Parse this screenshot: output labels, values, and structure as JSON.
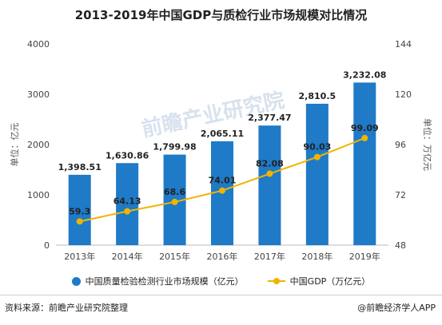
{
  "chart_data": {
    "type": "bar+line",
    "title": "2013-2019年中国GDP与质检行业市场规模对比情况",
    "categories": [
      "2013年",
      "2014年",
      "2015年",
      "2016年",
      "2017年",
      "2018年",
      "2019年"
    ],
    "series": [
      {
        "name": "中国质量检验检测行业市场规模（亿元）",
        "type": "bar",
        "axis": "left",
        "color": "#1f7ac8",
        "values": [
          1398.51,
          1630.86,
          1799.98,
          2065.11,
          2377.47,
          2810.5,
          3232.08
        ],
        "labels": [
          "1,398.51",
          "1,630.86",
          "1,799.98",
          "2,065.11",
          "2,377.47",
          "2,810.5",
          "3,232.08"
        ]
      },
      {
        "name": "中国GDP（万亿元）",
        "type": "line",
        "axis": "right",
        "color": "#f0b400",
        "values": [
          59.3,
          64.13,
          68.6,
          74.01,
          82.08,
          90.03,
          99.09
        ],
        "labels": [
          "59.3",
          "64.13",
          "68.6",
          "74.01",
          "82.08",
          "90.03",
          "99.09"
        ]
      }
    ],
    "y_left": {
      "label": "单位：亿元",
      "ylim": [
        0,
        4000
      ],
      "ticks": [
        "0",
        "1000",
        "2000",
        "3000",
        "4000"
      ]
    },
    "y_right": {
      "label": "单位：万亿元",
      "ylim": [
        48,
        144
      ],
      "ticks": [
        "48",
        "72",
        "96",
        "120",
        "144"
      ]
    },
    "grid": false,
    "legend_position": "bottom"
  },
  "watermark": "前瞻产业研究院",
  "footer": {
    "source": "资料来源：前瞻产业研究院整理",
    "brand": "@前瞻经济学人APP"
  }
}
